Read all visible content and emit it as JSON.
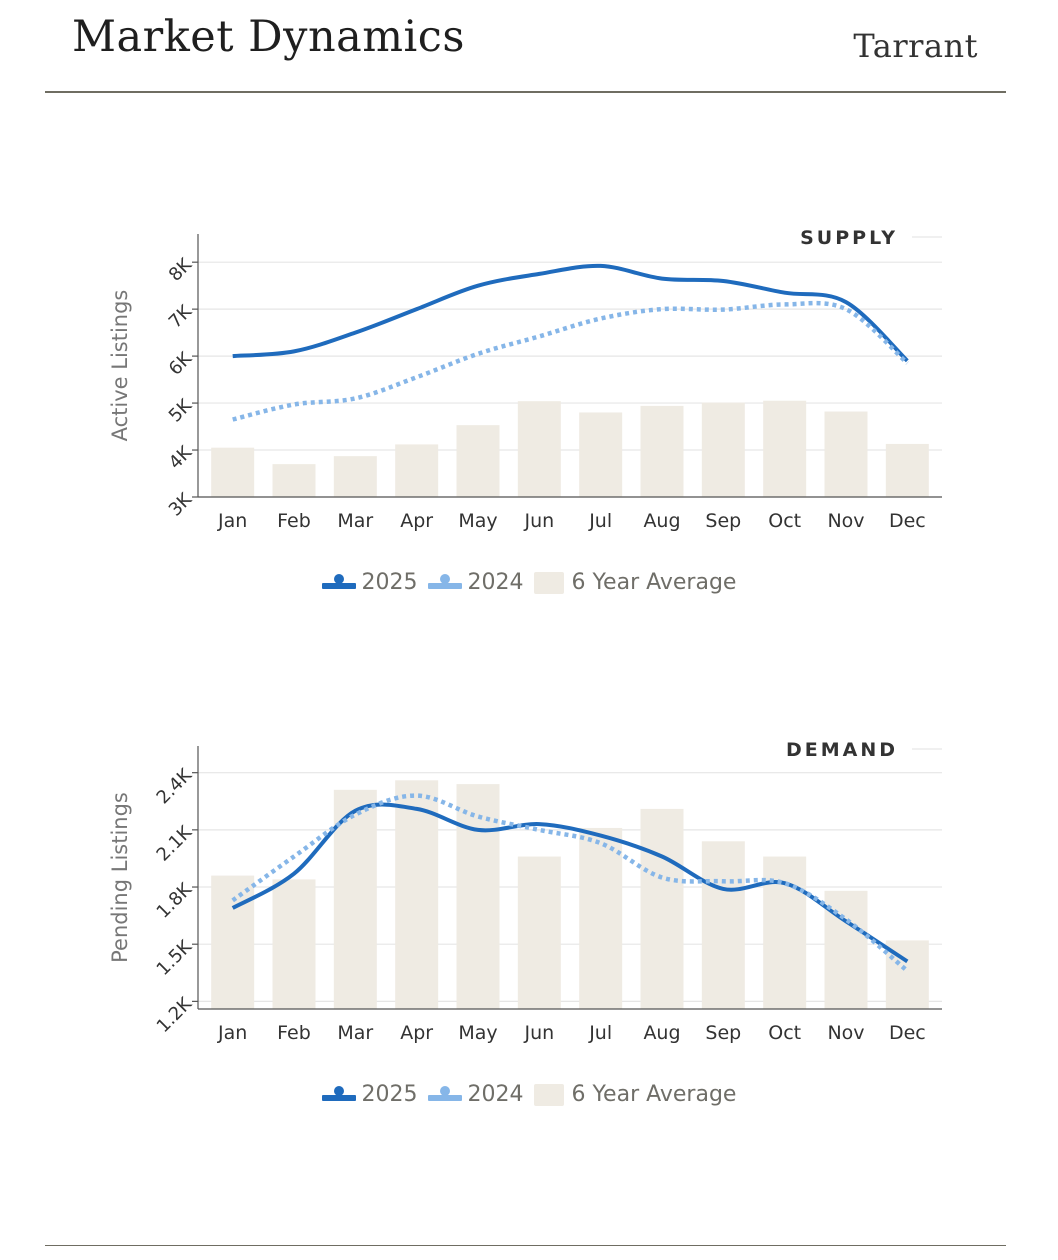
{
  "header": {
    "title": "Market Dynamics",
    "region": "Tarrant"
  },
  "colors": {
    "series_2025": "#1f6bbd",
    "series_2024": "#86b6e8",
    "average": "#efebe3",
    "grid": "#e6e6e6",
    "axis": "#555555"
  },
  "legend": {
    "label_2025": "2025",
    "label_2024": "2024",
    "label_avg": "6 Year Average"
  },
  "chart_data": [
    {
      "type": "bar",
      "title": "SUPPLY",
      "ylabel": "Active Listings",
      "xlabel": "",
      "categories": [
        "Jan",
        "Feb",
        "Mar",
        "Apr",
        "May",
        "Jun",
        "Jul",
        "Aug",
        "Sep",
        "Oct",
        "Nov",
        "Dec"
      ],
      "ylim": [
        3000,
        8600
      ],
      "yticks": [
        3000,
        4000,
        5000,
        6000,
        7000,
        8000
      ],
      "ytick_labels": [
        "3K",
        "4K",
        "5K",
        "6K",
        "7K",
        "8K"
      ],
      "series": [
        {
          "name": "6 Year Average",
          "kind": "bar",
          "values": [
            4050,
            3700,
            3870,
            4120,
            4530,
            5040,
            4800,
            4940,
            5010,
            5050,
            4820,
            4130
          ]
        },
        {
          "name": "2025",
          "kind": "line",
          "values": [
            6000,
            6100,
            6500,
            7000,
            7500,
            7750,
            7920,
            7650,
            7600,
            7350,
            7150,
            5900
          ]
        },
        {
          "name": "2024",
          "kind": "line-dotted",
          "values": [
            4650,
            4970,
            5100,
            5550,
            6050,
            6420,
            6800,
            7000,
            6990,
            7100,
            7000,
            5850
          ]
        }
      ]
    },
    {
      "type": "bar",
      "title": "DEMAND",
      "ylabel": "Pending Listings",
      "xlabel": "",
      "categories": [
        "Jan",
        "Feb",
        "Mar",
        "Apr",
        "May",
        "Jun",
        "Jul",
        "Aug",
        "Sep",
        "Oct",
        "Nov",
        "Dec"
      ],
      "ylim": [
        1160,
        2540
      ],
      "yticks": [
        1200,
        1500,
        1800,
        2100,
        2400
      ],
      "ytick_labels": [
        "1.2K",
        "1.5K",
        "1.8K",
        "2.1K",
        "2.4K"
      ],
      "series": [
        {
          "name": "6 Year Average",
          "kind": "bar",
          "values": [
            1860,
            1840,
            2310,
            2360,
            2340,
            1960,
            2110,
            2210,
            2040,
            1960,
            1780,
            1520
          ]
        },
        {
          "name": "2025",
          "kind": "line",
          "values": [
            1690,
            1870,
            2200,
            2210,
            2100,
            2130,
            2070,
            1960,
            1790,
            1820,
            1620,
            1410
          ]
        },
        {
          "name": "2024",
          "kind": "line-dotted",
          "values": [
            1730,
            1960,
            2180,
            2280,
            2170,
            2100,
            2030,
            1850,
            1830,
            1820,
            1630,
            1360
          ]
        }
      ]
    }
  ]
}
